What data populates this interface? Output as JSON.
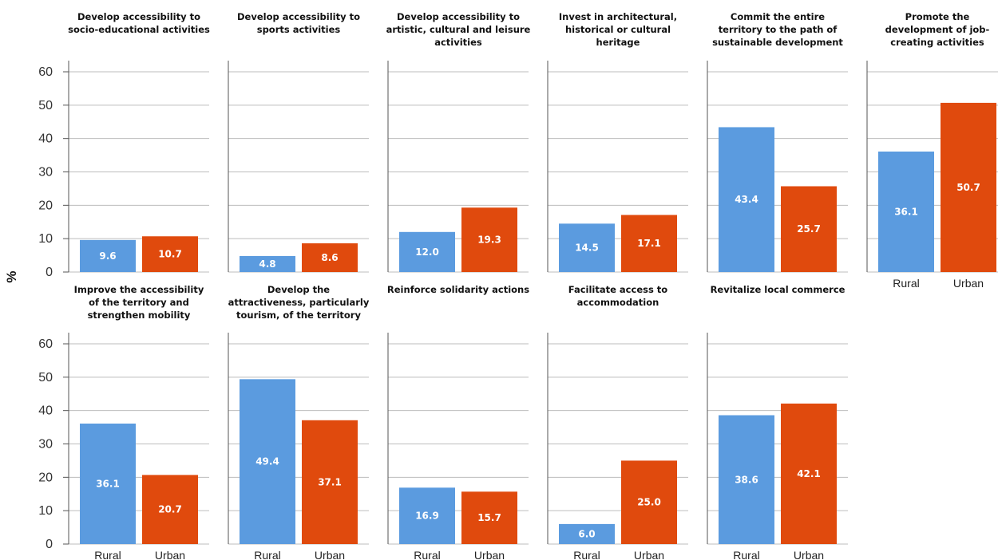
{
  "chart_data": {
    "type": "bar",
    "ylabel": "%",
    "ylim": [
      0,
      60
    ],
    "yticks": [
      0,
      10,
      20,
      30,
      40,
      50,
      60
    ],
    "categories": [
      "Rural",
      "Urban"
    ],
    "colors": {
      "Rural": "#5b9bdf",
      "Urban": "#e04a0d"
    },
    "grid": true,
    "panels": [
      {
        "title": [
          "Develop accessibility to",
          "socio-educational activities"
        ],
        "values": [
          9.6,
          10.7
        ]
      },
      {
        "title": [
          "Develop accessibility to",
          "sports activities"
        ],
        "values": [
          4.8,
          8.6
        ]
      },
      {
        "title": [
          "Develop accessibility to",
          "artistic, cultural and leisure",
          "activities"
        ],
        "values": [
          12.0,
          19.3
        ]
      },
      {
        "title": [
          "Invest in architectural,",
          "historical or cultural",
          "heritage"
        ],
        "values": [
          14.5,
          17.1
        ]
      },
      {
        "title": [
          "Commit the entire",
          "territory to the path of",
          "sustainable development"
        ],
        "values": [
          43.4,
          25.7
        ]
      },
      {
        "title": [
          "Promote the",
          "development of job-",
          "creating activities"
        ],
        "values": [
          36.1,
          50.7
        ]
      },
      {
        "title": [
          "Improve the accessibility",
          "of the territory and",
          "strengthen mobility"
        ],
        "values": [
          36.1,
          20.7
        ]
      },
      {
        "title": [
          "Develop the",
          "attractiveness, particularly",
          "tourism, of the territory"
        ],
        "values": [
          49.4,
          37.1
        ]
      },
      {
        "title": [
          "Reinforce solidarity actions"
        ],
        "values": [
          16.9,
          15.7
        ]
      },
      {
        "title": [
          "Facilitate access to",
          "accommodation"
        ],
        "values": [
          6.0,
          25.0
        ]
      },
      {
        "title": [
          "Revitalize local commerce"
        ],
        "values": [
          38.6,
          42.1
        ]
      }
    ]
  }
}
